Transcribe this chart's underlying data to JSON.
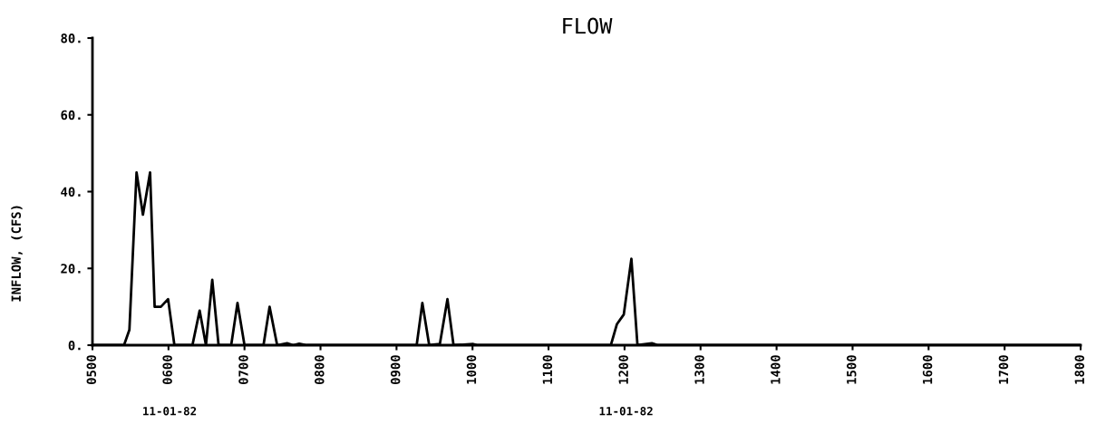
{
  "chart_data": {
    "type": "line",
    "title": "FLOW",
    "ylabel": "INFLOW, (CFS)",
    "series": [
      {
        "color": "#000000",
        "x": [
          500,
          541.5,
          548.6,
          558,
          566.4,
          575.8,
          581.8,
          590,
          599.5,
          607.8,
          631.5,
          641,
          649.3,
          657.6,
          665.9,
          682.5,
          690.8,
          700,
          725,
          733,
          743,
          756,
          764,
          772,
          782,
          900,
          926.5,
          934,
          943,
          957,
          967,
          975,
          1001,
          1007,
          1182,
          1190,
          1199,
          1209,
          1217,
          1236,
          1244,
          1800
        ],
        "values": [
          0,
          0,
          4,
          45,
          34,
          45,
          10,
          10,
          12,
          0,
          0,
          9,
          0,
          17,
          0,
          0,
          11,
          0,
          0,
          10,
          0,
          0.5,
          0,
          0.4,
          0,
          0,
          0,
          11,
          0,
          0.3,
          12,
          0,
          0.3,
          0,
          0,
          5.5,
          8,
          22.5,
          0,
          0.5,
          0,
          0
        ]
      }
    ],
    "xlim": [
      500,
      1800
    ],
    "ylim": [
      0,
      80
    ],
    "xticks": [
      {
        "value": 500,
        "label": "0500"
      },
      {
        "value": 600,
        "label": "0600"
      },
      {
        "value": 700,
        "label": "0700"
      },
      {
        "value": 800,
        "label": "0800"
      },
      {
        "value": 900,
        "label": "0900"
      },
      1000,
      1100,
      1200,
      1300,
      1400,
      1500,
      1600,
      1700,
      1800
    ],
    "yticks": [
      {
        "value": 0,
        "label": "0."
      },
      {
        "value": 20,
        "label": "20."
      },
      {
        "value": 40,
        "label": "40."
      },
      {
        "value": 60,
        "label": "60."
      },
      {
        "value": 80,
        "label": "80."
      }
    ],
    "annotations": [
      "11-01-82",
      "11-01-82"
    ],
    "grid": false,
    "marker": "none",
    "line_style": "solid"
  }
}
